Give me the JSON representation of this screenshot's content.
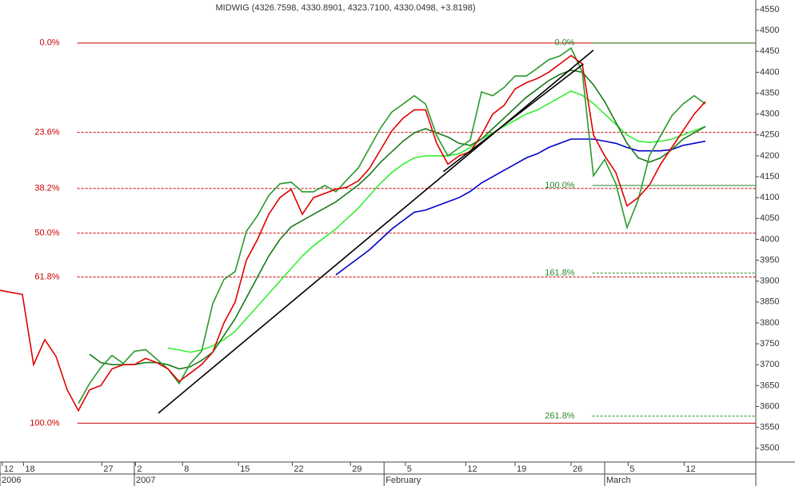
{
  "chart_data": {
    "type": "line",
    "title": "MIDWIG (4326.7598, 4330.8901, 4323.7100, 4330.0498, +3.8198)",
    "x": [
      0,
      1,
      2,
      3,
      4,
      5,
      6,
      7,
      8,
      9,
      10,
      11,
      12,
      13,
      14,
      15,
      16,
      17,
      18,
      19,
      20,
      21,
      22,
      23,
      24,
      25,
      26,
      27,
      28,
      29,
      30,
      31,
      32,
      33,
      34,
      35,
      36,
      37,
      38,
      39,
      40,
      41,
      42,
      43,
      44,
      45,
      46,
      47,
      48,
      49,
      50,
      51,
      52,
      53,
      54,
      55,
      56,
      57,
      58,
      59,
      60,
      61,
      62,
      63
    ],
    "xlim": [
      0,
      67.5
    ],
    "xticks": [
      {
        "value": 0.2,
        "label": "12"
      },
      {
        "value": 2.1,
        "label": "18"
      },
      {
        "value": 9.1,
        "label": "27"
      },
      {
        "value": 12.1,
        "label": "2"
      },
      {
        "value": 16.3,
        "label": "8"
      },
      {
        "value": 21.3,
        "label": "15"
      },
      {
        "value": 26.1,
        "label": "22"
      },
      {
        "value": 31.3,
        "label": "29"
      },
      {
        "value": 36.2,
        "label": "5"
      },
      {
        "value": 41.6,
        "label": "12"
      },
      {
        "value": 46,
        "label": "19"
      },
      {
        "value": 51,
        "label": "26"
      },
      {
        "value": 56.1,
        "label": "5"
      },
      {
        "value": 61.1,
        "label": "12"
      }
    ],
    "xperiods": [
      {
        "value": 0,
        "label": "2006"
      },
      {
        "value": 12,
        "label": "2007"
      },
      {
        "value": 34.3,
        "label": "February"
      },
      {
        "value": 54,
        "label": "March"
      }
    ],
    "ylim": [
      3467,
      4573
    ],
    "yticks": [
      3500,
      3550,
      3600,
      3650,
      3700,
      3750,
      3800,
      3850,
      3900,
      3950,
      4000,
      4050,
      4100,
      4150,
      4200,
      4250,
      4300,
      4350,
      4400,
      4450,
      4500,
      4550
    ],
    "series": [
      {
        "color": "#33ee33",
        "values": [
          null,
          null,
          null,
          null,
          null,
          null,
          null,
          null,
          null,
          null,
          null,
          null,
          null,
          null,
          null,
          3740,
          3735,
          3730,
          3735,
          3745,
          3760,
          3780,
          3810,
          3840,
          3870,
          3900,
          3930,
          3960,
          3985,
          4005,
          4025,
          4050,
          4075,
          4105,
          4135,
          4160,
          4180,
          4195,
          4200,
          4200,
          4200,
          4205,
          4220,
          4240,
          4255,
          4270,
          4285,
          4300,
          4310,
          4325,
          4340,
          4355,
          4345,
          4325,
          4300,
          4275,
          4250,
          4235,
          4232,
          4235,
          4240,
          4250,
          4260,
          4270
        ]
      },
      {
        "color": "#0000cc",
        "values": [
          null,
          null,
          null,
          null,
          null,
          null,
          null,
          null,
          null,
          null,
          null,
          null,
          null,
          null,
          null,
          null,
          null,
          null,
          null,
          null,
          null,
          null,
          null,
          null,
          null,
          null,
          null,
          null,
          null,
          null,
          3915,
          3935,
          3955,
          3975,
          4000,
          4025,
          4045,
          4065,
          4070,
          4080,
          4090,
          4100,
          4115,
          4135,
          4150,
          4165,
          4180,
          4195,
          4205,
          4220,
          4230,
          4240,
          4240,
          4240,
          4235,
          4230,
          4220,
          4212,
          4212,
          4212,
          4215,
          4225,
          4230,
          4235
        ]
      },
      {
        "color": "#1a7a1a",
        "values": [
          null,
          null,
          null,
          null,
          null,
          null,
          null,
          null,
          3725,
          3705,
          3700,
          3700,
          3700,
          3705,
          3705,
          3700,
          3690,
          3695,
          3710,
          3730,
          3770,
          3810,
          3860,
          3910,
          3960,
          4000,
          4030,
          4045,
          4060,
          4075,
          4090,
          4110,
          4130,
          4155,
          4185,
          4210,
          4235,
          4255,
          4265,
          4255,
          4245,
          4230,
          4225,
          4240,
          4265,
          4290,
          4315,
          4340,
          4360,
          4380,
          4395,
          4405,
          4400,
          4370,
          4330,
          4280,
          4230,
          4195,
          4185,
          4195,
          4215,
          4240,
          4255,
          4270
        ]
      },
      {
        "color": "#2a9a2a",
        "values": [
          null,
          null,
          null,
          null,
          null,
          null,
          null,
          3607,
          3655,
          3693,
          3722,
          3703,
          3732,
          3736,
          3713,
          3690,
          3655,
          3703,
          3732,
          3846,
          3904,
          3923,
          4019,
          4057,
          4105,
          4133,
          4137,
          4114,
          4114,
          4129,
          4114,
          4143,
          4171,
          4219,
          4267,
          4305,
          4324,
          4344,
          4324,
          4248,
          4200,
          4219,
          4238,
          4353,
          4344,
          4363,
          4391,
          4391,
          4410,
          4430,
          4439,
          4458,
          4401,
          4152,
          4191,
          4133,
          4028,
          4095,
          4200,
          4248,
          4296,
          4324,
          4344,
          4324
        ]
      },
      {
        "color": "#e00000",
        "values": [
          3878,
          3873,
          3868,
          3700,
          3760,
          3720,
          3640,
          3590,
          3640,
          3650,
          3690,
          3700,
          3700,
          3715,
          3705,
          3690,
          3660,
          3680,
          3700,
          3730,
          3800,
          3850,
          3950,
          4000,
          4060,
          4100,
          4120,
          4060,
          4100,
          4110,
          4120,
          4125,
          4140,
          4170,
          4215,
          4260,
          4290,
          4310,
          4310,
          4230,
          4180,
          4200,
          4210,
          4250,
          4300,
          4320,
          4360,
          4375,
          4385,
          4400,
          4420,
          4440,
          4420,
          4250,
          4200,
          4160,
          4080,
          4100,
          4130,
          4180,
          4220,
          4260,
          4300,
          4330
        ]
      }
    ],
    "trendlines": [
      {
        "color": "#000000",
        "x": [
          14.14,
          53
        ],
        "values": [
          3584,
          4453
        ]
      },
      {
        "color": "#000000",
        "x": [
          39.6,
          52.1
        ],
        "values": [
          4162,
          4420
        ]
      }
    ],
    "fib_sets": [
      {
        "color": "#cc0000",
        "x_start": 6.9,
        "levels": [
          {
            "value": 4470,
            "label": "0.0%",
            "style": "solid"
          },
          {
            "value": 4256,
            "label": "23.6%",
            "style": "dashed"
          },
          {
            "value": 4122,
            "label": "38.2%",
            "style": "dashed"
          },
          {
            "value": 4015,
            "label": "50.0%",
            "style": "dashed"
          },
          {
            "value": 3910,
            "label": "61.8%",
            "style": "dashed"
          },
          {
            "value": 3560,
            "label": "100.0%",
            "style": "solid"
          }
        ]
      },
      {
        "color": "#2a8a2a",
        "x_start": 52.9,
        "levels": [
          {
            "value": 4470,
            "label": "0.0%",
            "style": "solid"
          },
          {
            "value": 4129,
            "label": "100.0%",
            "style": "solid"
          },
          {
            "value": 3919,
            "label": "161.8%",
            "style": "dashed"
          },
          {
            "value": 3577,
            "label": "261.8%",
            "style": "dashed"
          }
        ]
      }
    ]
  }
}
